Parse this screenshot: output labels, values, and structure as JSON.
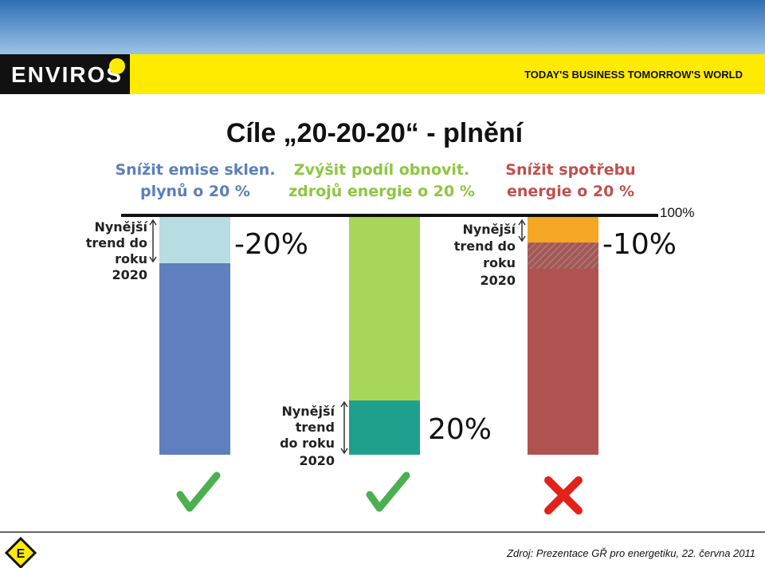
{
  "header": {
    "brand": "ENVIROS",
    "tagline": "TODAY'S BUSINESS TOMORROW'S WORLD"
  },
  "title": "Cíle „20-20-20“ - plnění",
  "reference_label": "100%",
  "goals": [
    {
      "heading": [
        "Snížit emise sklen.",
        "plynů o 20 %"
      ],
      "trend_label": [
        "Nynější",
        "trend do",
        "roku",
        "2020"
      ],
      "change_label": "-20%"
    },
    {
      "heading": [
        "Zvýšit podíl obnovit.",
        "zdrojů energie o 20 %"
      ],
      "trend_label": [
        "Nynější",
        "trend",
        "do roku",
        "2020"
      ],
      "change_label": "20%"
    },
    {
      "heading": [
        "Snížit spotřebu",
        "energie o 20 %"
      ],
      "trend_label": [
        "Nynější",
        "trend do",
        "roku",
        "2020"
      ],
      "change_label": "-10%"
    }
  ],
  "source": "Zdroj: Prezentace GŘ pro energetiku, 22. června 2011"
}
